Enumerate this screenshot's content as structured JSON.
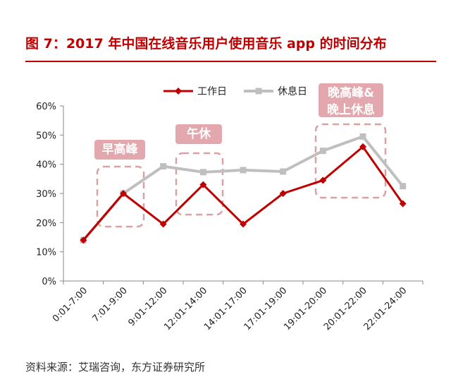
{
  "title": "图 7：2017 年中国在线音乐用户使用音乐 app 的时间分布",
  "source": "资料来源：艾瑞咨询，东方证券研究所",
  "colors": {
    "accent": "#c00000",
    "workday": "#c00000",
    "restday": "#bfbfbf",
    "annotation": "#e3a8ad",
    "annotation_box": "#d9a0a5"
  },
  "chart_data": {
    "type": "line",
    "categories": [
      "0:01-7:00",
      "7:01-9:00",
      "9:01-12:00",
      "12:01-14:00",
      "14:01-17:00",
      "17:01-19:00",
      "19:01-20:00",
      "20:01-22:00",
      "22:01-24:00"
    ],
    "series": [
      {
        "name": "工作日",
        "values": [
          14,
          30,
          19.5,
          33,
          19.5,
          30,
          34.5,
          46,
          26.5
        ]
      },
      {
        "name": "休息日",
        "values": [
          14,
          30,
          39.3,
          37.3,
          38,
          37.5,
          44.6,
          49.5,
          32.5
        ]
      }
    ],
    "yticks": [
      "0%",
      "10%",
      "20%",
      "30%",
      "40%",
      "50%",
      "60%"
    ],
    "ylim": [
      0,
      60
    ],
    "xlabel": "",
    "ylabel": "",
    "legend_position": "top",
    "annotations": [
      "早高峰",
      "午休",
      "晚高峰&",
      "晚上休息"
    ]
  }
}
